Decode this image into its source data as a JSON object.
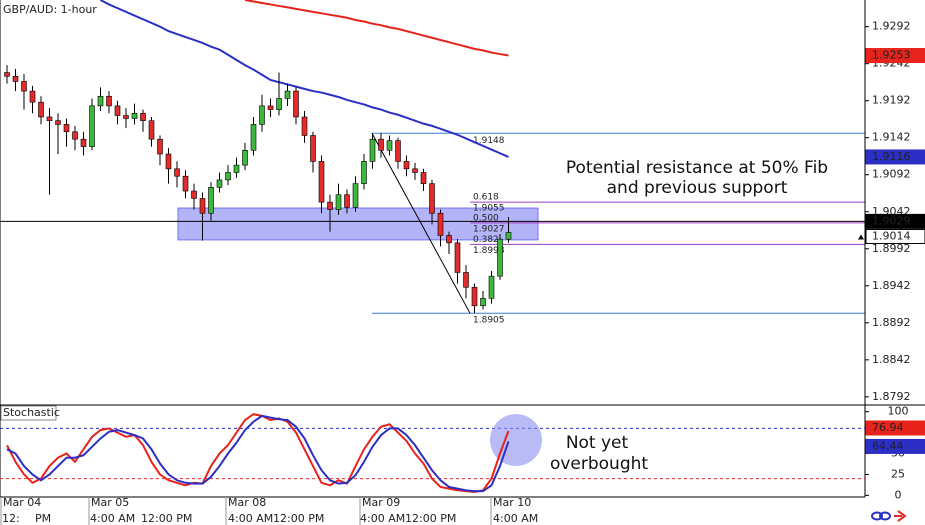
{
  "chart_data": {
    "type": "candlestick",
    "title": "GBP/AUD: 1-hour",
    "up_color": "#3cb83c",
    "down_color": "#e32b2b",
    "open": [
      1.923,
      1.9225,
      1.9218,
      1.9205,
      1.919,
      1.917,
      1.9165,
      1.916,
      1.915,
      1.914,
      1.913,
      1.9185,
      1.9198,
      1.9185,
      1.9172,
      1.9168,
      1.9175,
      1.9165,
      1.914,
      1.912,
      1.91,
      1.909,
      1.907,
      1.906,
      1.904,
      1.9075,
      1.9085,
      1.9095,
      1.9105,
      1.9125,
      1.916,
      1.9185,
      1.918,
      1.9195,
      1.9205,
      1.917,
      1.9145,
      1.911,
      1.9055,
      1.9045,
      1.9065,
      1.9048,
      1.908,
      1.911,
      1.914,
      1.9125,
      1.9138,
      1.911,
      1.91,
      1.9095,
      1.908,
      1.904,
      1.901,
      1.9,
      1.896,
      1.894,
      1.8915,
      1.8925,
      1.8955,
      1.9005
    ],
    "high": [
      1.924,
      1.9235,
      1.9228,
      1.9212,
      1.9198,
      1.9182,
      1.9175,
      1.9168,
      1.9158,
      1.915,
      1.9195,
      1.921,
      1.9205,
      1.9192,
      1.9182,
      1.9188,
      1.918,
      1.917,
      1.9145,
      1.9128,
      1.911,
      1.9098,
      1.908,
      1.9068,
      1.9082,
      1.9095,
      1.9105,
      1.9115,
      1.9135,
      1.917,
      1.92,
      1.9195,
      1.923,
      1.9215,
      1.921,
      1.9178,
      1.915,
      1.9118,
      1.9065,
      1.908,
      1.9072,
      1.909,
      1.912,
      1.9148,
      1.9148,
      1.9145,
      1.9142,
      1.9118,
      1.9108,
      1.91,
      1.9085,
      1.9045,
      1.9015,
      1.9005,
      1.897,
      1.8945,
      1.8935,
      1.8962,
      1.9012,
      1.9035
    ],
    "low": [
      1.9215,
      1.9205,
      1.918,
      1.9175,
      1.916,
      1.9065,
      1.912,
      1.913,
      1.9125,
      1.9118,
      1.9125,
      1.9178,
      1.9175,
      1.916,
      1.9155,
      1.916,
      1.915,
      1.913,
      1.9105,
      1.908,
      1.9075,
      1.906,
      1.9045,
      1.9003,
      1.903,
      1.9068,
      1.9078,
      1.9088,
      1.9098,
      1.9118,
      1.915,
      1.917,
      1.9172,
      1.9185,
      1.916,
      1.9135,
      1.9095,
      1.904,
      1.9015,
      1.9038,
      1.904,
      1.9042,
      1.9072,
      1.91,
      1.9115,
      1.9118,
      1.91,
      1.909,
      1.9085,
      1.907,
      1.9025,
      1.8995,
      1.8985,
      1.8945,
      1.8925,
      1.8905,
      1.891,
      1.8918,
      1.895,
      1.9
    ],
    "close": [
      1.9225,
      1.9218,
      1.9205,
      1.919,
      1.917,
      1.9165,
      1.916,
      1.915,
      1.914,
      1.913,
      1.9185,
      1.9198,
      1.9185,
      1.9172,
      1.9168,
      1.9175,
      1.9165,
      1.914,
      1.912,
      1.91,
      1.909,
      1.907,
      1.906,
      1.904,
      1.9075,
      1.9085,
      1.9095,
      1.9105,
      1.9125,
      1.916,
      1.9185,
      1.918,
      1.9195,
      1.9205,
      1.917,
      1.9145,
      1.911,
      1.9055,
      1.9045,
      1.9065,
      1.9048,
      1.908,
      1.911,
      1.914,
      1.9125,
      1.9138,
      1.911,
      1.91,
      1.9095,
      1.908,
      1.904,
      1.901,
      1.9,
      1.896,
      1.894,
      1.8915,
      1.8925,
      1.8955,
      1.9005,
      1.9014
    ],
    "ylim": [
      1.8781,
      1.9328
    ],
    "yticks": [
      1.9292,
      1.9242,
      1.9192,
      1.9142,
      1.9092,
      1.9042,
      1.8992,
      1.8942,
      1.8892,
      1.8842,
      1.8792
    ],
    "moving_averages": [
      {
        "color": "#e8231c",
        "values": [
          null,
          null,
          null,
          null,
          null,
          null,
          null,
          null,
          null,
          null,
          null,
          null,
          null,
          null,
          null,
          null,
          null,
          null,
          null,
          null,
          null,
          null,
          null,
          null,
          null,
          null,
          null,
          null,
          1.9328,
          1.9326,
          1.9324,
          1.9322,
          1.932,
          1.9318,
          1.9316,
          1.9314,
          1.9312,
          1.931,
          1.9308,
          1.9306,
          1.9304,
          1.9301,
          1.9299,
          1.9296,
          1.9294,
          1.9291,
          1.9289,
          1.9286,
          1.9283,
          1.928,
          1.9277,
          1.9274,
          1.9271,
          1.9268,
          1.9265,
          1.9262,
          1.926,
          1.9257,
          1.9255,
          1.9253
        ]
      },
      {
        "color": "#2b2fc4",
        "values": [
          null,
          null,
          null,
          null,
          null,
          null,
          null,
          null,
          null,
          null,
          null,
          1.9328,
          1.9322,
          1.9317,
          1.9312,
          1.9307,
          1.9302,
          1.9297,
          1.9292,
          1.9286,
          1.9282,
          1.9278,
          1.9274,
          1.927,
          1.9265,
          1.9261,
          1.9254,
          1.9247,
          1.924,
          1.9234,
          1.9227,
          1.922,
          1.9217,
          1.9214,
          1.9211,
          1.9208,
          1.9205,
          1.9203,
          1.92,
          1.9197,
          1.9193,
          1.919,
          1.9187,
          1.9183,
          1.918,
          1.9176,
          1.9173,
          1.9169,
          1.9165,
          1.9161,
          1.9158,
          1.9154,
          1.915,
          1.9146,
          1.9141,
          1.9136,
          1.9131,
          1.9126,
          1.9121,
          1.9116
        ]
      }
    ],
    "horizontal_line": 1.9029,
    "zone": {
      "top": 1.9047,
      "bottom": 1.9004,
      "color": "#7474f0"
    },
    "fib": {
      "high": 1.9148,
      "low": 1.8905,
      "color": "#3a7bd5",
      "level_color": "#a03cc0",
      "levels": [
        {
          "ratio": "0.618",
          "value": 1.9055
        },
        {
          "ratio": "0.500",
          "value": 1.9027
        },
        {
          "ratio": "0.382",
          "value": 1.8998
        }
      ]
    },
    "annotation": [
      "Potential resistance at 50% Fib",
      "and previous support"
    ],
    "x_labels": {
      "dates": [
        "Mar 04",
        "Mar 05",
        "Mar 08",
        "Mar 09",
        "Mar 10"
      ],
      "times": [
        "12:",
        "PM",
        "4:00 AM",
        "12:00 PM",
        "4:00 AM",
        "12:00 PM",
        "4:00 AM",
        "12:00 PM",
        "4:00 AM"
      ]
    },
    "stochastic": {
      "title": "Stochastic",
      "ylim": [
        -2,
        108
      ],
      "yticks": [
        100,
        75,
        50,
        25,
        0
      ],
      "upper_level": 80,
      "lower_level": 20,
      "series": [
        {
          "color": "#e8231c",
          "values": [
            60,
            40,
            25,
            15,
            20,
            35,
            45,
            50,
            40,
            55,
            70,
            78,
            80,
            75,
            70,
            72,
            60,
            40,
            25,
            18,
            15,
            12,
            15,
            14,
            35,
            50,
            60,
            75,
            90,
            97,
            95,
            90,
            92,
            88,
            75,
            55,
            35,
            15,
            12,
            18,
            14,
            35,
            55,
            70,
            82,
            85,
            75,
            65,
            50,
            38,
            20,
            10,
            8,
            6,
            5,
            4,
            6,
            20,
            50,
            76.94
          ]
        },
        {
          "color": "#2b2fc4",
          "values": [
            55,
            50,
            35,
            25,
            18,
            25,
            35,
            45,
            45,
            48,
            58,
            68,
            76,
            78,
            75,
            72,
            68,
            55,
            38,
            25,
            18,
            15,
            14,
            14,
            22,
            35,
            50,
            63,
            78,
            88,
            95,
            93,
            91,
            90,
            82,
            68,
            48,
            30,
            18,
            14,
            15,
            24,
            40,
            58,
            72,
            80,
            80,
            72,
            60,
            45,
            30,
            18,
            10,
            8,
            6,
            5,
            5,
            12,
            35,
            64.44
          ]
        }
      ],
      "annotation": [
        "Not yet",
        "overbought"
      ]
    }
  }
}
